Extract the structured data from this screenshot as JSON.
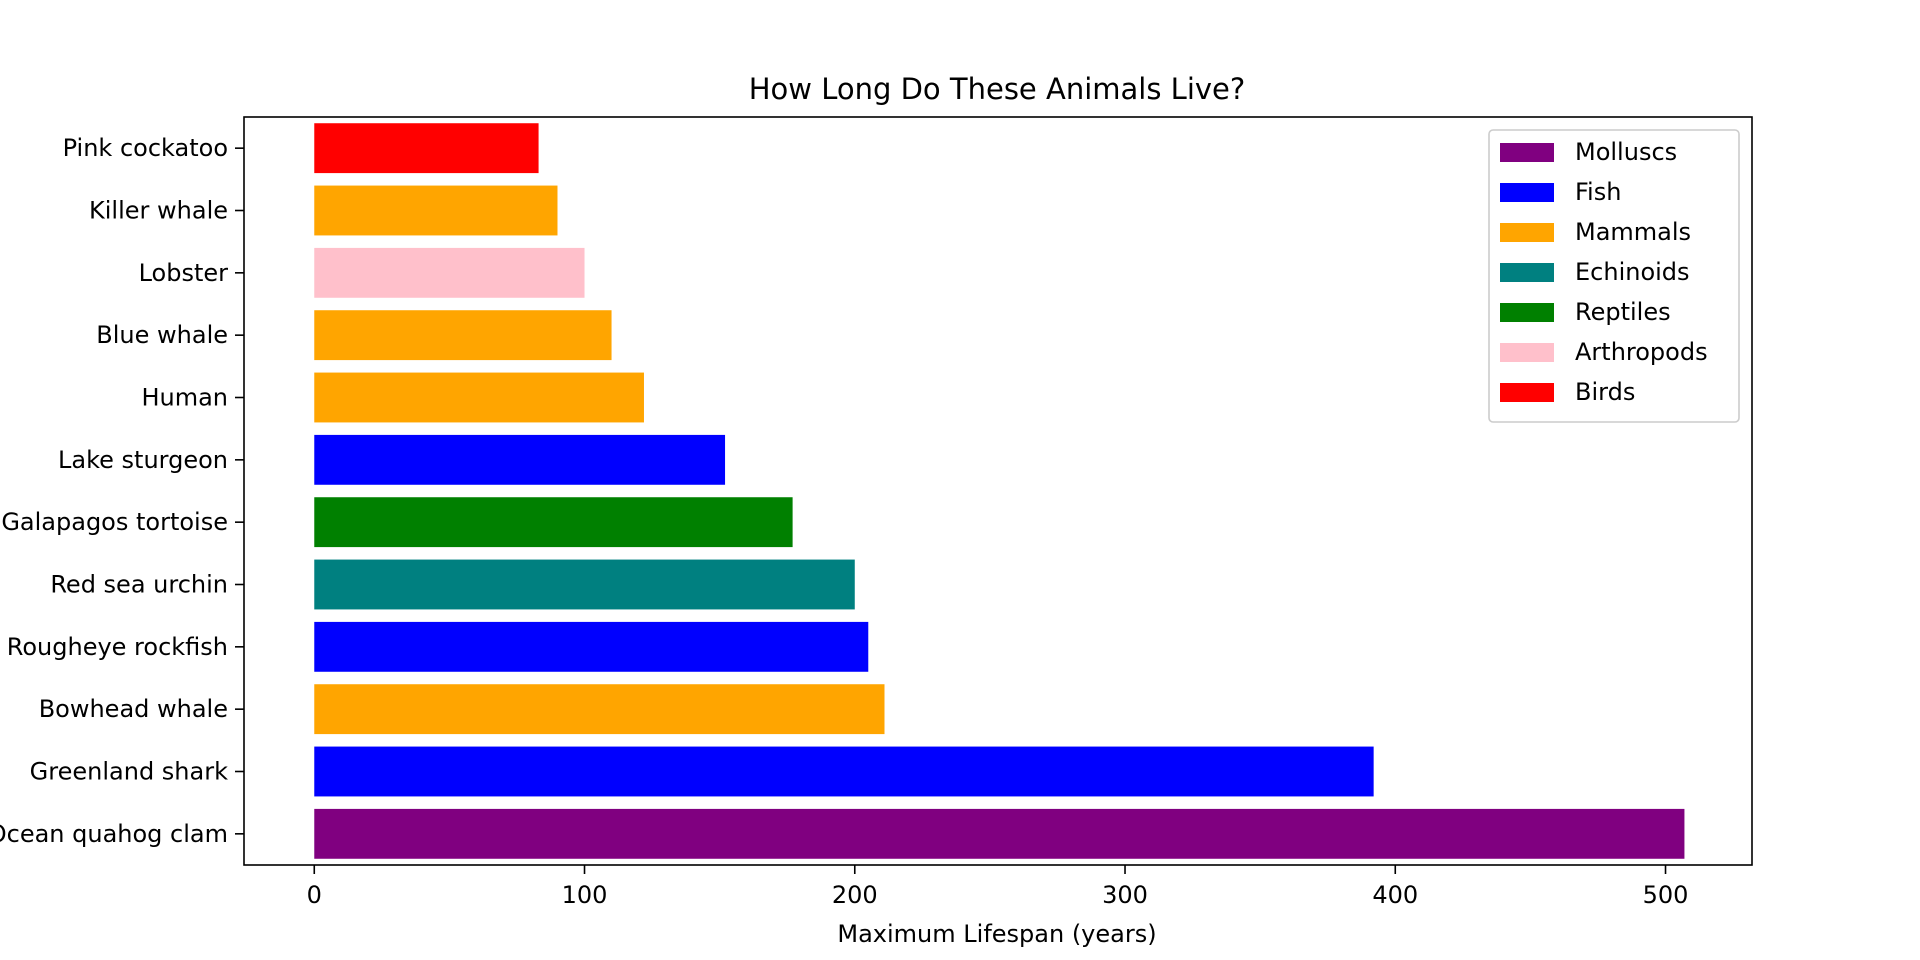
{
  "chart_data": {
    "type": "bar",
    "orientation": "horizontal",
    "title": "How Long Do These Animals Live?",
    "xlabel": "Maximum Lifespan (years)",
    "ylabel": "",
    "xlim": [
      -26,
      532
    ],
    "xticks": [
      0,
      100,
      200,
      300,
      400,
      500
    ],
    "grid": false,
    "legend_position": "top-right",
    "categories": [
      "Ocean quahog clam",
      "Greenland shark",
      "Bowhead whale",
      "Rougheye rockfish",
      "Red sea urchin",
      "Galapagos tortoise",
      "Lake sturgeon",
      "Human",
      "Blue whale",
      "Lobster",
      "Killer whale",
      "Pink cockatoo"
    ],
    "values": [
      507,
      392,
      211,
      205,
      200,
      177,
      152,
      122,
      110,
      100,
      90,
      83
    ],
    "bar_groups": [
      "Molluscs",
      "Fish",
      "Mammals",
      "Fish",
      "Echinoids",
      "Reptiles",
      "Fish",
      "Mammals",
      "Mammals",
      "Arthropods",
      "Mammals",
      "Birds"
    ],
    "legend": [
      {
        "label": "Molluscs",
        "color": "#800080"
      },
      {
        "label": "Fish",
        "color": "#0000ff"
      },
      {
        "label": "Mammals",
        "color": "#ffa500"
      },
      {
        "label": "Echinoids",
        "color": "#008080"
      },
      {
        "label": "Reptiles",
        "color": "#008000"
      },
      {
        "label": "Arthropods",
        "color": "#ffc0cb"
      },
      {
        "label": "Birds",
        "color": "#ff0000"
      }
    ]
  }
}
